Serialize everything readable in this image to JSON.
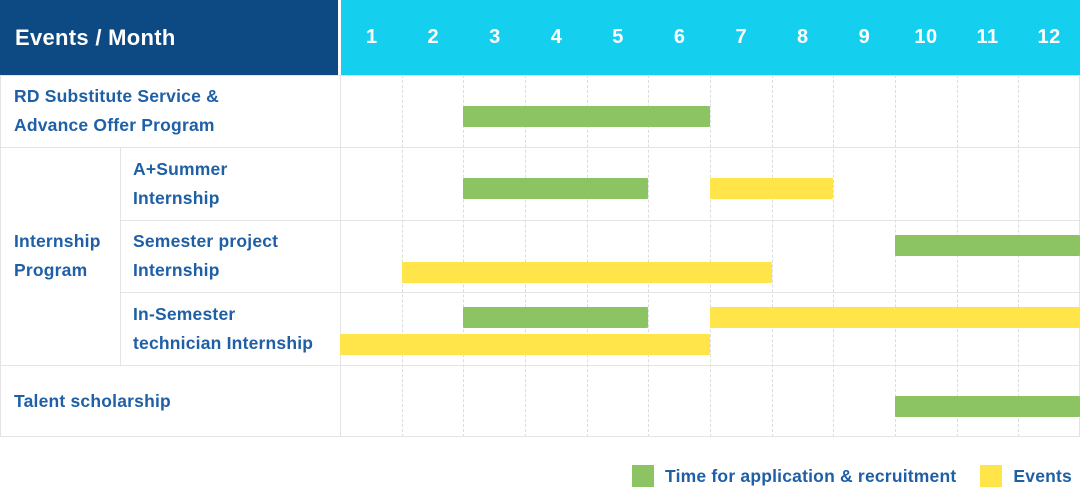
{
  "header": {
    "title": "Events / Month",
    "months": [
      "1",
      "2",
      "3",
      "4",
      "5",
      "6",
      "7",
      "8",
      "9",
      "10",
      "11",
      "12"
    ]
  },
  "colors": {
    "header_bg": "#0d4a83",
    "months_bg": "#14cfed",
    "green": "#8cc463",
    "yellow": "#ffe44a",
    "label_text": "#1e5fa6",
    "grid_line": "#e4e4e4"
  },
  "legend": [
    {
      "color": "green",
      "swatch_icon": "green-square",
      "label": "Time for application & recruitment"
    },
    {
      "color": "yellow",
      "swatch_icon": "yellow-square",
      "label": "Events"
    }
  ],
  "chart_data": {
    "type": "gantt",
    "x_unit": "month",
    "x_ticks": [
      1,
      2,
      3,
      4,
      5,
      6,
      7,
      8,
      9,
      10,
      11,
      12
    ],
    "grid": true,
    "legend_position": "bottom-right",
    "series_meaning": {
      "green": "Time for application & recruitment",
      "yellow": "Events"
    },
    "groups": [
      {
        "label": "Internship Program",
        "label_lines": [
          "Internship",
          "Program"
        ],
        "from_row": 1,
        "to_row": 3
      }
    ],
    "rows": [
      {
        "label": "RD Substitute Service & Advance Offer Program",
        "label_lines": [
          "RD Substitute Service &",
          "Advance Offer Program"
        ],
        "label_col": "full",
        "bars": [
          {
            "color": "green",
            "start_month": 3,
            "end_month": 6,
            "track": "single"
          }
        ]
      },
      {
        "label": "A+Summer Internship",
        "label_lines": [
          "A+Summer",
          "Internship"
        ],
        "label_col": "sub",
        "bars": [
          {
            "color": "green",
            "start_month": 3,
            "end_month": 5,
            "track": "single"
          },
          {
            "color": "yellow",
            "start_month": 7,
            "end_month": 8,
            "track": "single"
          }
        ]
      },
      {
        "label": "Semester project Internship",
        "label_lines": [
          "Semester project",
          "Internship"
        ],
        "label_col": "sub",
        "bars": [
          {
            "color": "green",
            "start_month": 10,
            "end_month": 12,
            "track": "a"
          },
          {
            "color": "yellow",
            "start_month": 2,
            "end_month": 7,
            "track": "b"
          }
        ]
      },
      {
        "label": "In-Semester technician Internship",
        "label_lines": [
          "In-Semester",
          "technician Internship"
        ],
        "label_col": "sub",
        "bars": [
          {
            "color": "green",
            "start_month": 3,
            "end_month": 5,
            "track": "a"
          },
          {
            "color": "yellow",
            "start_month": 7,
            "end_month": 12,
            "track": "a"
          },
          {
            "color": "yellow",
            "start_month": 1,
            "end_month": 6,
            "track": "b"
          }
        ]
      },
      {
        "label": "Talent scholarship",
        "label_lines": [
          "Talent scholarship"
        ],
        "label_col": "full",
        "bars": [
          {
            "color": "green",
            "start_month": 10,
            "end_month": 12,
            "track": "single"
          }
        ]
      }
    ]
  }
}
